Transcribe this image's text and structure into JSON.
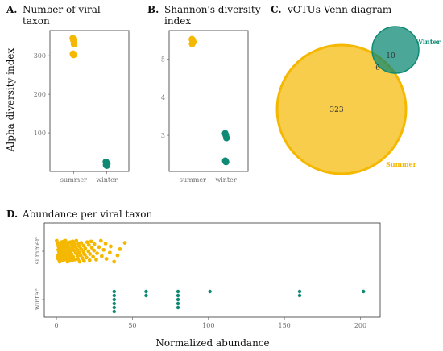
{
  "colors": {
    "summer": "#f5b800",
    "winter": "#0f8a74",
    "frame": "#333333"
  },
  "chart_data": [
    {
      "panel": "A.",
      "type": "scatter",
      "title": [
        "Number of viral",
        "taxon"
      ],
      "ylabel": "Alpha diversity index",
      "categories": [
        "summer",
        "winter"
      ],
      "ylim": [
        0,
        365
      ],
      "yticks": [
        100,
        200,
        300
      ],
      "series": [
        {
          "name": "summer",
          "values": [
            345,
            340,
            330,
            305,
            302
          ]
        },
        {
          "name": "winter",
          "values": [
            25,
            22,
            20,
            17,
            15
          ]
        }
      ]
    },
    {
      "panel": "B.",
      "type": "scatter",
      "title": [
        "Shannon's diversity",
        "index"
      ],
      "categories": [
        "summer",
        "winter"
      ],
      "ylim": [
        2.05,
        5.75
      ],
      "yticks": [
        3,
        4,
        5
      ],
      "series": [
        {
          "name": "summer",
          "values": [
            5.52,
            5.5,
            5.45,
            5.4
          ]
        },
        {
          "name": "winter",
          "values": [
            3.05,
            3.0,
            2.93,
            2.33,
            2.3
          ]
        }
      ]
    },
    {
      "panel": "C.",
      "type": "venn",
      "title": "vOTUs Venn diagram",
      "sets": [
        {
          "name": "Summer",
          "only": 323
        },
        {
          "name": "Winter",
          "only": 10
        }
      ],
      "overlap": 6
    },
    {
      "panel": "D.",
      "type": "scatter",
      "title": "Abundance per viral taxon",
      "xlabel": "Normalized abundance",
      "xlim": [
        -8,
        213
      ],
      "xticks": [
        0,
        50,
        100,
        150,
        200
      ],
      "categories": [
        "summer",
        "winter"
      ],
      "series": [
        {
          "name": "summer",
          "values": [
            0.5,
            0.8,
            1,
            1,
            1.2,
            1.5,
            1.5,
            2,
            2,
            2,
            2.3,
            2.5,
            2.5,
            3,
            3,
            3,
            3.2,
            3.5,
            3.5,
            4,
            4,
            4,
            4.3,
            4.5,
            4.5,
            5,
            5,
            5,
            5.3,
            5.5,
            5.5,
            6,
            6,
            6,
            6.3,
            6.5,
            6.5,
            7,
            7,
            7,
            7.5,
            7.5,
            8,
            8,
            8,
            8.5,
            8.5,
            9,
            9,
            9,
            9.5,
            10,
            10,
            10,
            10.5,
            11,
            11,
            11.5,
            12,
            12,
            12.5,
            13,
            13,
            13.5,
            14,
            14,
            14.5,
            15,
            15,
            15.5,
            16,
            16,
            16.5,
            17,
            17.5,
            18,
            18,
            19,
            19,
            20,
            20,
            21,
            21,
            22,
            22,
            23,
            23,
            24,
            25,
            25,
            26,
            27,
            28,
            29,
            30,
            31,
            32,
            33,
            35,
            36,
            38,
            40,
            42,
            45
          ]
        },
        {
          "name": "winter",
          "values": [
            38,
            38,
            38,
            38,
            38,
            38,
            59,
            59,
            80,
            80,
            80,
            80,
            80,
            101,
            160,
            160,
            202
          ]
        }
      ]
    }
  ]
}
